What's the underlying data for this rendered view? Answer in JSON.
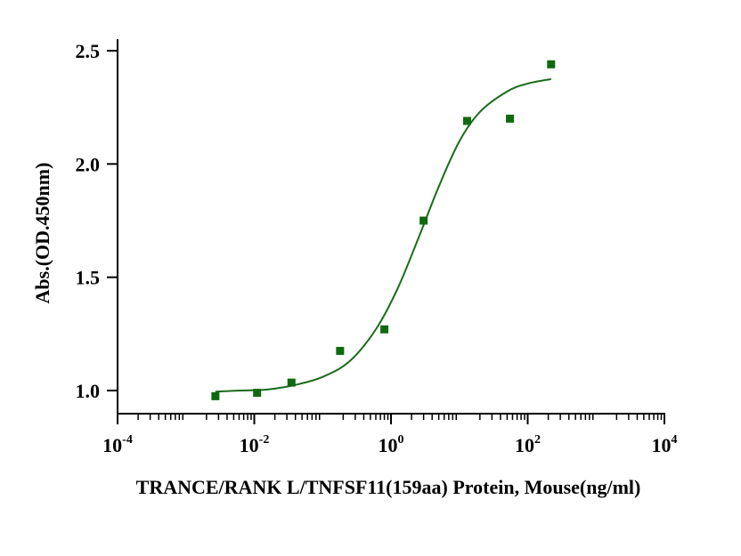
{
  "chart_data": {
    "type": "scatter",
    "title": "",
    "xlabel": "TRANCE/RANK L/TNFSF11(159aa) Protein, Mouse(ng/ml)",
    "ylabel": "Abs.(OD.450nm)",
    "x_scale": "log",
    "xlim": [
      0.0001,
      10000
    ],
    "ylim": [
      0.9,
      2.5
    ],
    "x_ticks": [
      {
        "base": "10",
        "exp": "-4"
      },
      {
        "base": "10",
        "exp": "-2"
      },
      {
        "base": "10",
        "exp": "0"
      },
      {
        "base": "10",
        "exp": "2"
      },
      {
        "base": "10",
        "exp": "4"
      }
    ],
    "x_tick_values": [
      0.0001,
      0.01,
      1,
      100,
      10000
    ],
    "y_ticks": [
      "1.0",
      "1.5",
      "2.0",
      "2.5"
    ],
    "y_tick_values": [
      1.0,
      1.5,
      2.0,
      2.5
    ],
    "grid": false,
    "color": "#1a6b1a",
    "marker_color": "#0f6a0f",
    "series": [
      {
        "points": [
          {
            "x": 0.0027,
            "y": 0.975
          },
          {
            "x": 0.011,
            "y": 0.99
          },
          {
            "x": 0.035,
            "y": 1.035
          },
          {
            "x": 0.18,
            "y": 1.175
          },
          {
            "x": 0.8,
            "y": 1.27
          },
          {
            "x": 3.0,
            "y": 1.75
          },
          {
            "x": 13,
            "y": 2.19
          },
          {
            "x": 55,
            "y": 2.2
          },
          {
            "x": 220,
            "y": 2.44
          }
        ],
        "fit_curve": [
          {
            "x": 0.0027,
            "y": 0.995
          },
          {
            "x": 0.0063,
            "y": 1.0
          },
          {
            "x": 0.016,
            "y": 1.005
          },
          {
            "x": 0.04,
            "y": 1.025
          },
          {
            "x": 0.1,
            "y": 1.06
          },
          {
            "x": 0.25,
            "y": 1.13
          },
          {
            "x": 0.6,
            "y": 1.27
          },
          {
            "x": 1.25,
            "y": 1.45
          },
          {
            "x": 2.5,
            "y": 1.67
          },
          {
            "x": 5.0,
            "y": 1.9
          },
          {
            "x": 10,
            "y": 2.1
          },
          {
            "x": 20,
            "y": 2.23
          },
          {
            "x": 50,
            "y": 2.32
          },
          {
            "x": 100,
            "y": 2.355
          },
          {
            "x": 220,
            "y": 2.375
          }
        ]
      }
    ]
  }
}
